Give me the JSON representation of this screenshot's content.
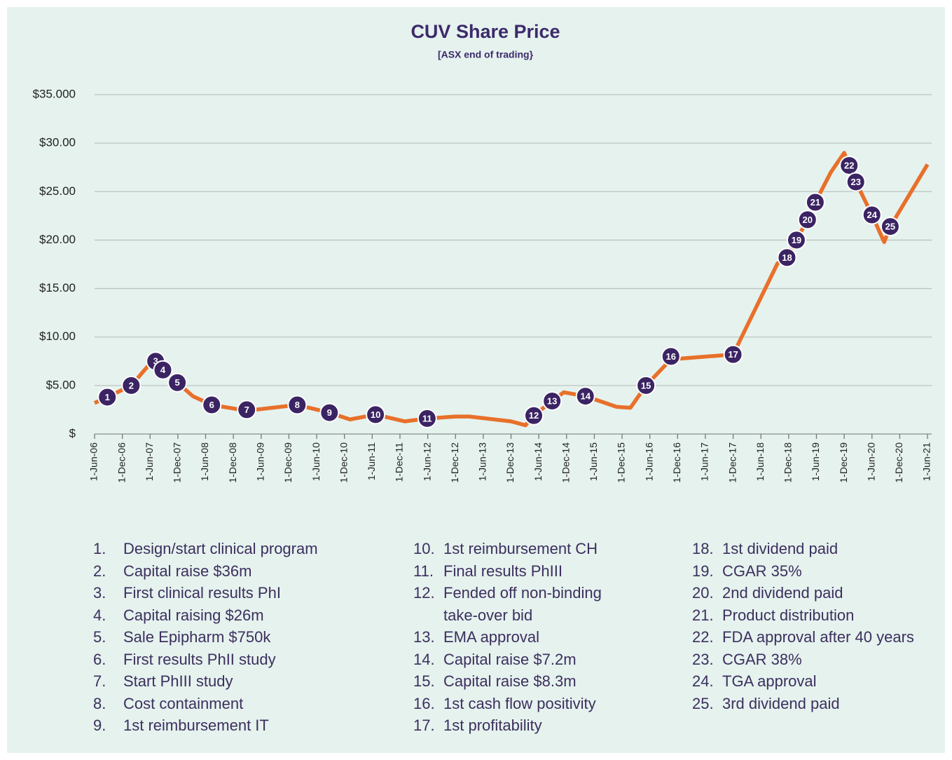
{
  "chart_data": {
    "type": "line",
    "title": "CUV Share Price",
    "subtitle": "[ASX end of trading}",
    "xlim": [
      2006.5,
      2021.5
    ],
    "xticks": [
      {
        "value": 2006.5,
        "label": "1-Jun-06"
      },
      {
        "value": 2007.0,
        "label": "1-Dec-06"
      },
      {
        "value": 2007.5,
        "label": "1-Jun-07"
      },
      {
        "value": 2008.0,
        "label": "1-Dec-07"
      },
      {
        "value": 2008.5,
        "label": "1-Jun-08"
      },
      {
        "value": 2009.0,
        "label": "1-Dec-08"
      },
      {
        "value": 2009.5,
        "label": "1-Jun-09"
      },
      {
        "value": 2010.0,
        "label": "1-Dec-09"
      },
      {
        "value": 2010.5,
        "label": "1-Jun-10"
      },
      {
        "value": 2011.0,
        "label": "1-Dec-10"
      },
      {
        "value": 2011.5,
        "label": "1-Jun-11"
      },
      {
        "value": 2012.0,
        "label": "1-Dec-11"
      },
      {
        "value": 2012.5,
        "label": "1-Jun-12"
      },
      {
        "value": 2013.0,
        "label": "1-Dec-12"
      },
      {
        "value": 2013.5,
        "label": "1-Jun-13"
      },
      {
        "value": 2014.0,
        "label": "1-Dec-13"
      },
      {
        "value": 2014.5,
        "label": "1-Jun-14"
      },
      {
        "value": 2015.0,
        "label": "1-Dec-14"
      },
      {
        "value": 2015.5,
        "label": "1-Jun-15"
      },
      {
        "value": 2016.0,
        "label": "1-Dec-15"
      },
      {
        "value": 2016.5,
        "label": "1-Jun-16"
      },
      {
        "value": 2017.0,
        "label": "1-Dec-16"
      },
      {
        "value": 2017.5,
        "label": "1-Jun-17"
      },
      {
        "value": 2018.0,
        "label": "1-Dec-17"
      },
      {
        "value": 2018.5,
        "label": "1-Jun-18"
      },
      {
        "value": 2019.0,
        "label": "1-Dec-18"
      },
      {
        "value": 2019.5,
        "label": "1-Jun-19"
      },
      {
        "value": 2020.0,
        "label": "1-Dec-19"
      },
      {
        "value": 2020.5,
        "label": "1-Jun-20"
      },
      {
        "value": 2021.0,
        "label": "1-Dec-20"
      },
      {
        "value": 2021.5,
        "label": "1-Jun-21"
      }
    ],
    "ylim": [
      0,
      35
    ],
    "yticks": [
      {
        "value": 0,
        "label": "$"
      },
      {
        "value": 5,
        "label": "$5.00"
      },
      {
        "value": 10,
        "label": "$10.00"
      },
      {
        "value": 15,
        "label": "$15.00"
      },
      {
        "value": 20,
        "label": "$20.00"
      },
      {
        "value": 25,
        "label": "$25.00"
      },
      {
        "value": 30,
        "label": "$30.00"
      },
      {
        "value": 35,
        "label": "$35.000"
      }
    ],
    "grid": true,
    "series": [
      {
        "name": "CUV",
        "color": "#e8702a",
        "x": [
          2006.5,
          2006.73,
          2007.16,
          2007.55,
          2007.79,
          2007.99,
          2008.27,
          2008.61,
          2009.24,
          2010.15,
          2010.73,
          2011.1,
          2011.56,
          2012.09,
          2012.49,
          2013.0,
          2013.25,
          2014.0,
          2014.26,
          2014.41,
          2014.74,
          2014.95,
          2015.34,
          2015.9,
          2016.15,
          2016.43,
          2016.88,
          2018.0,
          2018.8,
          2018.97,
          2019.14,
          2019.34,
          2019.48,
          2019.76,
          2020.0,
          2020.09,
          2020.21,
          2020.5,
          2020.72,
          2020.83,
          2021.5
        ],
        "values": [
          3.2,
          3.8,
          5.0,
          7.6,
          6.6,
          5.3,
          3.9,
          3.0,
          2.4,
          3.0,
          2.2,
          1.5,
          2.0,
          1.3,
          1.6,
          1.8,
          1.8,
          1.3,
          0.9,
          1.9,
          3.4,
          4.3,
          3.9,
          2.8,
          2.7,
          5.0,
          7.7,
          8.2,
          17.6,
          18.3,
          20.0,
          22.1,
          23.9,
          27.0,
          29.0,
          27.7,
          26.0,
          22.6,
          19.8,
          21.4,
          27.8
        ]
      }
    ],
    "markers": [
      {
        "label": "1",
        "x": 2006.73,
        "y": 3.8
      },
      {
        "label": "2",
        "x": 2007.16,
        "y": 5.0
      },
      {
        "label": "3",
        "x": 2007.6,
        "y": 7.5
      },
      {
        "label": "4",
        "x": 2007.73,
        "y": 6.6
      },
      {
        "label": "5",
        "x": 2007.99,
        "y": 5.3
      },
      {
        "label": "6",
        "x": 2008.61,
        "y": 3.0
      },
      {
        "label": "7",
        "x": 2009.24,
        "y": 2.5
      },
      {
        "label": "8",
        "x": 2010.15,
        "y": 3.0
      },
      {
        "label": "9",
        "x": 2010.73,
        "y": 2.2
      },
      {
        "label": "10",
        "x": 2011.56,
        "y": 2.0
      },
      {
        "label": "11",
        "x": 2012.49,
        "y": 1.6
      },
      {
        "label": "12",
        "x": 2014.41,
        "y": 1.9
      },
      {
        "label": "13",
        "x": 2014.74,
        "y": 3.4
      },
      {
        "label": "14",
        "x": 2015.34,
        "y": 3.9
      },
      {
        "label": "15",
        "x": 2016.43,
        "y": 5.0
      },
      {
        "label": "16",
        "x": 2016.88,
        "y": 8.0
      },
      {
        "label": "17",
        "x": 2018.0,
        "y": 8.2
      },
      {
        "label": "18",
        "x": 2018.97,
        "y": 18.2
      },
      {
        "label": "19",
        "x": 2019.14,
        "y": 20.0
      },
      {
        "label": "20",
        "x": 2019.34,
        "y": 22.1
      },
      {
        "label": "21",
        "x": 2019.48,
        "y": 23.9
      },
      {
        "label": "22",
        "x": 2020.09,
        "y": 27.7
      },
      {
        "label": "23",
        "x": 2020.21,
        "y": 26.0
      },
      {
        "label": "24",
        "x": 2020.5,
        "y": 22.6
      },
      {
        "label": "25",
        "x": 2020.83,
        "y": 21.4
      }
    ],
    "notes": [
      {
        "number": "1.",
        "text": "Design/start clinical program"
      },
      {
        "number": "2.",
        "text": "Capital raise $36m"
      },
      {
        "number": "3.",
        "text": "First clinical results PhI"
      },
      {
        "number": "4.",
        "text": "Capital raising $26m"
      },
      {
        "number": "5.",
        "text": "Sale Epipharm $750k"
      },
      {
        "number": "6.",
        "text": "First results PhII study"
      },
      {
        "number": "7.",
        "text": "Start PhIII study"
      },
      {
        "number": "8.",
        "text": "Cost containment"
      },
      {
        "number": "9.",
        "text": "1st reimbursement IT"
      },
      {
        "number": "10.",
        "text": "1st reimbursement CH"
      },
      {
        "number": "11.",
        "text": "Final results PhIII"
      },
      {
        "number": "12.",
        "text": "Fended off non-binding take-over bid"
      },
      {
        "number": "13.",
        "text": "EMA approval"
      },
      {
        "number": "14.",
        "text": "Capital raise $7.2m"
      },
      {
        "number": "15.",
        "text": "Capital raise $8.3m"
      },
      {
        "number": "16.",
        "text": "1st cash flow positivity"
      },
      {
        "number": "17.",
        "text": "1st profitability"
      },
      {
        "number": "18.",
        "text": "1st dividend paid"
      },
      {
        "number": "19.",
        "text": "CGAR 35%"
      },
      {
        "number": "20.",
        "text": "2nd dividend paid"
      },
      {
        "number": "21.",
        "text": "Product distribution"
      },
      {
        "number": "22.",
        "text": "FDA approval after 40 years"
      },
      {
        "number": "23.",
        "text": "CGAR 38%"
      },
      {
        "number": "24.",
        "text": "TGA approval"
      },
      {
        "number": "25.",
        "text": "3rd dividend paid"
      }
    ]
  }
}
